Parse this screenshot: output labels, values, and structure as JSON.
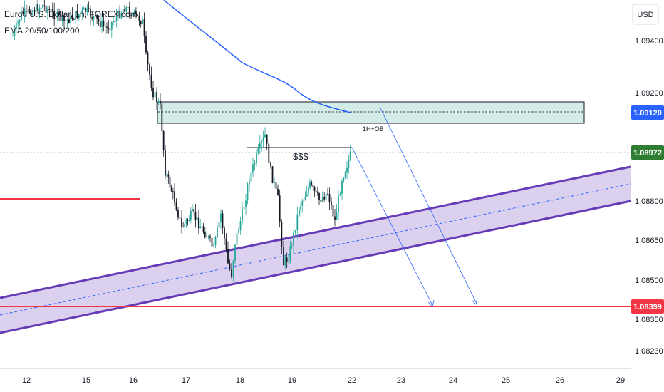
{
  "header": {
    "title": "Euro / U.S. Dollar, 1h, FOREX.com",
    "indicator": "EMA 20/50/100/200"
  },
  "currency_button": "USD",
  "chart_data": {
    "type": "candlestick",
    "title": "Euro / U.S. Dollar, 1h, FOREX.com",
    "y_ticks": [
      1.094,
      1.092,
      1.088,
      1.0865,
      1.085,
      1.0835,
      1.0823
    ],
    "y_tick_labels": [
      "1.09400",
      "1.09200",
      "1.08800",
      "1.08650",
      "1.08500",
      "1.08350",
      "1.08230"
    ],
    "x_ticks": [
      12,
      15,
      16,
      17,
      18,
      19,
      22,
      23,
      24,
      25,
      26,
      29
    ],
    "x_tick_labels": [
      "12",
      "15",
      "16",
      "17",
      "18",
      "19",
      "22",
      "23",
      "24",
      "25",
      "26",
      "29"
    ],
    "price_labels": [
      {
        "name": "ema",
        "value": "1.09120",
        "color": "#2962ff"
      },
      {
        "name": "last",
        "value": "1.08972",
        "color": "#2e7d32"
      },
      {
        "name": "target",
        "value": "1.08399",
        "color": "#f23645"
      }
    ],
    "annotations": [
      {
        "name": "order-block",
        "text": "1H+OB"
      },
      {
        "name": "liquidity",
        "text": "$$$"
      }
    ],
    "colors": {
      "candle_up": "#26a69a",
      "candle_down": "#131722",
      "ema": "#2962ff",
      "channel": "#7e57c2",
      "target_line": "#f23645",
      "order_block_fill": "#d4ece8"
    }
  }
}
